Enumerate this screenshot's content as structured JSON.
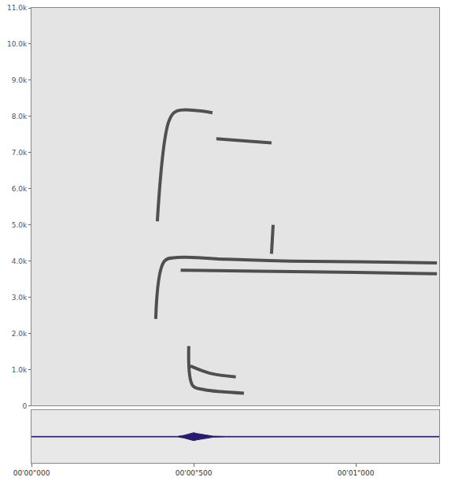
{
  "chart_data": [
    {
      "type": "line",
      "color": "#2b2b2b",
      "tick_labels": "y",
      "grid": false,
      "xlim": [
        0,
        1.257
      ],
      "ylim": [
        0,
        11000
      ],
      "yticks": [
        {
          "value": 0,
          "label": "0"
        },
        {
          "value": 1000,
          "label": "1.0k"
        },
        {
          "value": 2000,
          "label": "2.0k"
        },
        {
          "value": 3000,
          "label": "3.0k"
        },
        {
          "value": 4000,
          "label": "4.0k"
        },
        {
          "value": 5000,
          "label": "5.0k"
        },
        {
          "value": 6000,
          "label": "6.0k"
        },
        {
          "value": 7000,
          "label": "7.0k"
        },
        {
          "value": 8000,
          "label": "8.0k"
        },
        {
          "value": 9000,
          "label": "9.0k"
        },
        {
          "value": 10000,
          "label": "10.0k"
        },
        {
          "value": 11000,
          "label": "11.0k"
        }
      ],
      "series": [
        {
          "x": [
            0.388,
            0.425,
            0.449,
            0.558
          ],
          "values": [
            5100,
            7900,
            8150,
            8100
          ]
        },
        {
          "x": [
            0.57,
            0.65,
            0.74
          ],
          "values": [
            7380,
            7330,
            7270
          ]
        },
        {
          "x": [
            0.383,
            0.41,
            0.45,
            0.6,
            0.8,
            1.0,
            1.25
          ],
          "values": [
            2400,
            4000,
            4100,
            4050,
            4000,
            3980,
            3950
          ]
        },
        {
          "x": [
            0.46,
            0.7,
            1.0,
            1.25
          ],
          "values": [
            3750,
            3720,
            3690,
            3650
          ]
        },
        {
          "x": [
            0.74,
            0.745
          ],
          "values": [
            4200,
            5000
          ]
        },
        {
          "x": [
            0.485,
            0.497,
            0.53,
            0.655
          ],
          "values": [
            1650,
            560,
            450,
            350
          ]
        },
        {
          "x": [
            0.49,
            0.55,
            0.63
          ],
          "values": [
            1100,
            900,
            800
          ]
        }
      ]
    },
    {
      "type": "waveform",
      "color": "#2a1a6e",
      "tick_labels": "x",
      "xlim": [
        0,
        1.257
      ],
      "xticks": [
        {
          "value": 0,
          "label": "00'00\"000"
        },
        {
          "value": 0.5,
          "label": "00'00\"500"
        },
        {
          "value": 1.0,
          "label": "00'01\"000"
        }
      ],
      "ylim": [
        -1,
        1
      ],
      "x": [
        0,
        0.45,
        0.47,
        0.49,
        0.5,
        0.51,
        0.52,
        0.54,
        0.56,
        0.6,
        1.257
      ],
      "values": [
        0.01,
        0.01,
        0.05,
        0.12,
        0.15,
        0.12,
        0.1,
        0.05,
        0.02,
        0.01,
        0.01
      ]
    }
  ]
}
